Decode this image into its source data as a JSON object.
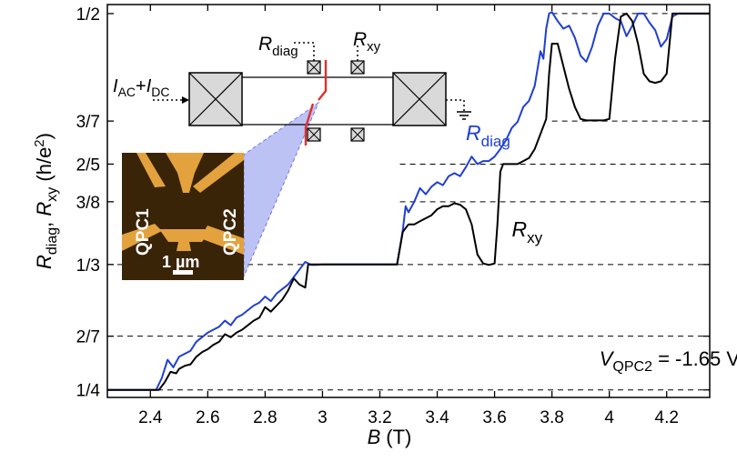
{
  "chart_data": {
    "type": "line",
    "xlabel": {
      "var": "B",
      "unit": "(T)"
    },
    "ylabel": {
      "var1": "R",
      "sub1": "diag",
      "sep": ", ",
      "var2": "R",
      "sub2": "xy",
      "unit": " (h/e",
      "sup": "2",
      "close": ")"
    },
    "xlim": [
      2.25,
      4.35
    ],
    "ylim": [
      0.245,
      0.506
    ],
    "xticks": [
      2.4,
      2.6,
      2.8,
      3.0,
      3.2,
      3.4,
      3.6,
      3.8,
      4.0,
      4.2
    ],
    "xtick_labels": [
      "2.4",
      "2.6",
      "2.8",
      "3",
      "3.2",
      "3.4",
      "3.6",
      "3.8",
      "4",
      "4.2"
    ],
    "yticks": [
      0.25,
      0.2857,
      0.3333,
      0.375,
      0.4,
      0.4286,
      0.5
    ],
    "ytick_labels": [
      "1/4",
      "2/7",
      "1/3",
      "3/8",
      "2/5",
      "3/7",
      "1/2"
    ],
    "dashed_lines": [
      {
        "y": 0.5,
        "x_from": 3.8
      },
      {
        "y": 0.4286,
        "x_from": 3.8
      },
      {
        "y": 0.4,
        "x_from": 3.27
      },
      {
        "y": 0.375,
        "x_from": 3.27
      },
      {
        "y": 0.3333,
        "x_from": 2.25
      },
      {
        "y": 0.2857,
        "x_from": 2.25
      },
      {
        "y": 0.25,
        "x_from": 2.25
      }
    ],
    "series": [
      {
        "name": "R_diag",
        "color": "#1f3fd1",
        "x": [
          2.25,
          2.42,
          2.44,
          2.46,
          2.48,
          2.5,
          2.52,
          2.54,
          2.56,
          2.58,
          2.6,
          2.62,
          2.64,
          2.66,
          2.68,
          2.7,
          2.72,
          2.74,
          2.76,
          2.78,
          2.8,
          2.82,
          2.84,
          2.86,
          2.88,
          2.9,
          2.92,
          2.94,
          2.96,
          2.98,
          3.0,
          3.1,
          3.2,
          3.26,
          3.28,
          3.29,
          3.3,
          3.32,
          3.34,
          3.36,
          3.38,
          3.4,
          3.42,
          3.44,
          3.46,
          3.48,
          3.5,
          3.52,
          3.54,
          3.56,
          3.58,
          3.6,
          3.62,
          3.64,
          3.66,
          3.68,
          3.7,
          3.72,
          3.74,
          3.76,
          3.77,
          3.78,
          3.79,
          3.8,
          3.82,
          3.84,
          3.86,
          3.88,
          3.9,
          3.92,
          3.94,
          3.96,
          3.98,
          4.0,
          4.02,
          4.04,
          4.06,
          4.08,
          4.1,
          4.12,
          4.14,
          4.16,
          4.18,
          4.2,
          4.22,
          4.24,
          4.26,
          4.35
        ],
        "y": [
          0.25,
          0.25,
          0.258,
          0.27,
          0.265,
          0.272,
          0.274,
          0.276,
          0.282,
          0.285,
          0.288,
          0.29,
          0.292,
          0.296,
          0.293,
          0.298,
          0.3,
          0.303,
          0.306,
          0.308,
          0.312,
          0.309,
          0.314,
          0.317,
          0.32,
          0.325,
          0.33,
          0.335,
          0.333,
          0.333,
          0.3333,
          0.3333,
          0.3333,
          0.3333,
          0.356,
          0.372,
          0.368,
          0.375,
          0.384,
          0.38,
          0.385,
          0.388,
          0.386,
          0.392,
          0.394,
          0.392,
          0.398,
          0.405,
          0.4,
          0.402,
          0.402,
          0.405,
          0.41,
          0.416,
          0.424,
          0.428,
          0.438,
          0.442,
          0.452,
          0.475,
          0.47,
          0.49,
          0.5,
          0.501,
          0.495,
          0.49,
          0.492,
          0.484,
          0.472,
          0.468,
          0.478,
          0.492,
          0.5,
          0.5,
          0.497,
          0.495,
          0.485,
          0.492,
          0.5,
          0.5,
          0.494,
          0.489,
          0.478,
          0.483,
          0.498,
          0.5,
          0.5,
          0.5
        ]
      },
      {
        "name": "R_xy",
        "color": "#000000",
        "x": [
          2.25,
          2.43,
          2.45,
          2.47,
          2.49,
          2.5,
          2.52,
          2.54,
          2.56,
          2.58,
          2.6,
          2.62,
          2.64,
          2.66,
          2.68,
          2.7,
          2.72,
          2.74,
          2.76,
          2.78,
          2.8,
          2.82,
          2.84,
          2.86,
          2.88,
          2.9,
          2.92,
          2.94,
          2.95,
          3.0,
          3.1,
          3.2,
          3.26,
          3.28,
          3.3,
          3.32,
          3.34,
          3.36,
          3.38,
          3.4,
          3.42,
          3.44,
          3.46,
          3.48,
          3.5,
          3.52,
          3.54,
          3.56,
          3.58,
          3.6,
          3.61,
          3.62,
          3.63,
          3.64,
          3.66,
          3.68,
          3.7,
          3.72,
          3.74,
          3.76,
          3.78,
          3.79,
          3.8,
          3.82,
          3.84,
          3.86,
          3.88,
          3.9,
          3.92,
          3.94,
          3.96,
          3.98,
          4.0,
          4.02,
          4.04,
          4.06,
          4.08,
          4.1,
          4.12,
          4.14,
          4.16,
          4.18,
          4.2,
          4.22,
          4.24,
          4.35
        ],
        "y": [
          0.25,
          0.25,
          0.255,
          0.262,
          0.261,
          0.264,
          0.266,
          0.267,
          0.272,
          0.275,
          0.277,
          0.28,
          0.282,
          0.287,
          0.285,
          0.288,
          0.29,
          0.293,
          0.296,
          0.298,
          0.305,
          0.302,
          0.306,
          0.31,
          0.316,
          0.324,
          0.32,
          0.318,
          0.3333,
          0.3333,
          0.3333,
          0.3333,
          0.3333,
          0.355,
          0.36,
          0.36,
          0.362,
          0.364,
          0.366,
          0.37,
          0.372,
          0.372,
          0.374,
          0.373,
          0.37,
          0.36,
          0.34,
          0.334,
          0.333,
          0.334,
          0.36,
          0.395,
          0.4,
          0.4,
          0.4,
          0.4,
          0.402,
          0.404,
          0.41,
          0.42,
          0.43,
          0.46,
          0.48,
          0.48,
          0.465,
          0.45,
          0.438,
          0.43,
          0.429,
          0.429,
          0.429,
          0.429,
          0.43,
          0.47,
          0.498,
          0.5,
          0.495,
          0.48,
          0.46,
          0.455,
          0.454,
          0.455,
          0.46,
          0.5,
          0.5,
          0.5
        ]
      }
    ],
    "annotations": {
      "rdiag_label": {
        "var": "R",
        "sub": "diag",
        "x": 3.5,
        "y": 0.416,
        "color": "#1f3fd1"
      },
      "rxy_label": {
        "var": "R",
        "sub": "xy",
        "x": 3.66,
        "y": 0.352,
        "color": "#000000"
      },
      "voltage": {
        "var": "V",
        "sub": "QPC2",
        "rest": " = -1.65 V",
        "x": 4.21,
        "y": 0.266
      }
    }
  },
  "inset": {
    "current_label": {
      "i1": "I",
      "s1": "AC",
      "plus": "+",
      "i2": "I",
      "s2": "DC"
    },
    "rdiag_label": {
      "var": "R",
      "sub": "diag"
    },
    "rxy_label": {
      "var": "R",
      "sub": "xy"
    },
    "qpc1_label": "QPC1",
    "qpc2_label": "QPC2",
    "scale_bar_label": "1 µm",
    "colors": {
      "contact_gray": "#d9d9d9",
      "constriction_red": "#e0302a",
      "highlight_blue": "#9aa2f0",
      "micrograph_dark": "#3a2408",
      "micrograph_gold": "#e3a23d"
    }
  }
}
